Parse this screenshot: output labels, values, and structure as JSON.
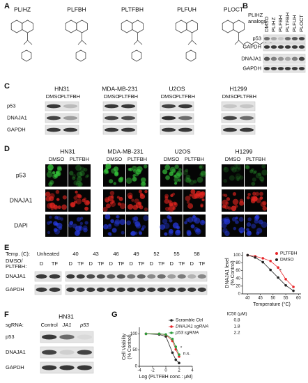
{
  "panels": {
    "A": {
      "label": "A",
      "compounds": [
        "PLIHZ",
        "PLFBH",
        "PLTFBH",
        "PLFUH",
        "PLOCT"
      ]
    },
    "B": {
      "label": "B",
      "group": [
        "PLIHZ",
        "analogs"
      ],
      "lanes": [
        "DMSO",
        "PLIHZ",
        "PLFBH",
        "PLTFBH",
        "PLFUH",
        "PLOCT"
      ],
      "rows": [
        "p53",
        "GAPDH",
        "DNAJA1",
        "GAPDH"
      ]
    },
    "C": {
      "label": "C",
      "cell_lines": [
        "HN31",
        "MDA-MB-231",
        "U2OS",
        "H1299"
      ],
      "treatments": [
        "DMSO",
        "PLTFBH"
      ],
      "rows": [
        "p53",
        "DNAJA1",
        "GAPDH"
      ]
    },
    "D": {
      "label": "D",
      "cell_lines": [
        "HN31",
        "MDA-MB-231",
        "U2OS",
        "H1299"
      ],
      "treatments": [
        "DMSO",
        "PLTFBH"
      ],
      "rows": [
        "p53",
        "DNAJA1",
        "DAPI"
      ]
    },
    "E": {
      "label": "E",
      "temp_label": "Temp. (C):",
      "treatment_label": [
        "DMSO/",
        "PLTFBH:"
      ],
      "temps": [
        "Unheated",
        "40",
        "43",
        "46",
        "49",
        "52",
        "55",
        "58"
      ],
      "lanes": [
        "D",
        "TF"
      ],
      "rows": [
        "DNAJA1",
        "GAPDH"
      ]
    },
    "F": {
      "label": "F",
      "cell_line": "HN31",
      "sgrna_label": "sgRNA:",
      "lanes": [
        "Control",
        "JA1",
        "p53"
      ],
      "rows": [
        "p53",
        "DNAJA1",
        "GAPDH"
      ]
    },
    "G": {
      "label": "G"
    }
  },
  "chart_data": [
    {
      "type": "line",
      "ylabel": [
        "DNAJA1 level",
        "(% Control)"
      ],
      "xlabel": "Temperature (°C)",
      "x": [
        40,
        43,
        46,
        49,
        52,
        55,
        58
      ],
      "xlim": [
        38,
        61
      ],
      "xticks": [
        40,
        45,
        50,
        55,
        60
      ],
      "ylim": [
        0,
        108
      ],
      "yticks": [
        0,
        20,
        40,
        60,
        80,
        100
      ],
      "legend": "upper right",
      "annotations": [
        "*"
      ],
      "series": [
        {
          "name": "PLTFBH",
          "color": "#e8262a",
          "values": [
            100,
            97,
            92,
            85,
            68,
            38,
            18
          ]
        },
        {
          "name": "DMSO",
          "color": "#222222",
          "values": [
            100,
            94,
            82,
            62,
            42,
            22,
            8
          ]
        }
      ]
    },
    {
      "type": "line",
      "ylabel": [
        "Cell Viability",
        "(% Control)"
      ],
      "xlabel": "Log (PLTFBH conc.: μM)",
      "x": [
        -3,
        -1,
        0,
        1,
        1.5,
        2
      ],
      "xlim": [
        -4,
        4
      ],
      "xticks": [
        -4,
        -2,
        0,
        2,
        4
      ],
      "ylim": [
        0,
        120
      ],
      "yticks": [
        0,
        50,
        100
      ],
      "legend": "upper right",
      "legend_title": "IC50 (μM)",
      "annotations": [
        "n.s.",
        "*"
      ],
      "series": [
        {
          "name": "Scramble Ctrl",
          "color": "#222222",
          "ic50": 0.8,
          "values": [
            100,
            98,
            92,
            42,
            20,
            10
          ]
        },
        {
          "name": "DNAJA1 sgRNA",
          "color": "#e8262a",
          "ic50": 1.8,
          "values": [
            100,
            100,
            97,
            78,
            52,
            30
          ]
        },
        {
          "name": "p53 sgRNA",
          "color": "#2e9e3e",
          "ic50": 2.2,
          "values": [
            100,
            100,
            98,
            84,
            60,
            36
          ]
        }
      ]
    }
  ]
}
